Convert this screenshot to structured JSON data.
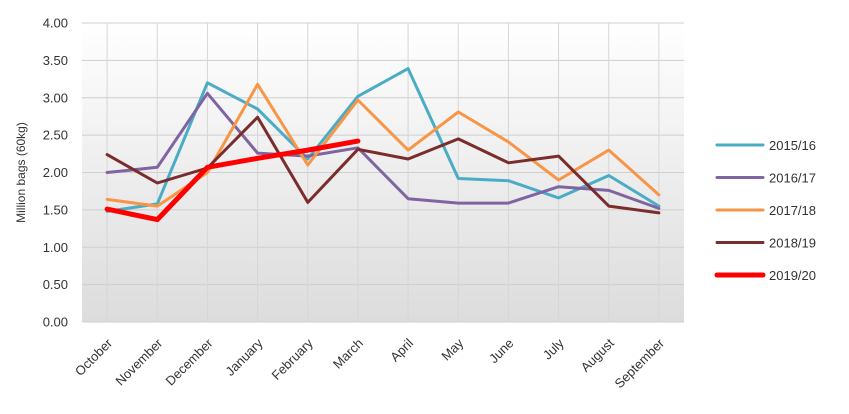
{
  "chart_data": {
    "type": "line",
    "title": "",
    "ylabel": "Million bags (60kg)",
    "xlabel": "",
    "ylim": [
      0,
      4
    ],
    "ytick_step": 0.5,
    "ytick_labels": [
      "0.00",
      "0.50",
      "1.00",
      "1.50",
      "2.00",
      "2.50",
      "3.00",
      "3.50",
      "4.00"
    ],
    "categories": [
      "October",
      "November",
      "December",
      "January",
      "February",
      "March",
      "April",
      "May",
      "June",
      "July",
      "August",
      "September"
    ],
    "grid": true,
    "legend_position": "right",
    "series": [
      {
        "name": "2015/16",
        "color": "#4bacc6",
        "values": [
          1.48,
          1.58,
          3.2,
          2.85,
          2.18,
          3.02,
          3.39,
          1.92,
          1.89,
          1.66,
          1.96,
          1.55
        ]
      },
      {
        "name": "2016/17",
        "color": "#8064a2",
        "values": [
          2.0,
          2.07,
          3.06,
          2.26,
          2.22,
          2.33,
          1.65,
          1.59,
          1.59,
          1.81,
          1.76,
          1.52
        ]
      },
      {
        "name": "2017/18",
        "color": "#f79646",
        "values": [
          1.64,
          1.55,
          2.0,
          3.18,
          2.1,
          2.97,
          2.3,
          2.81,
          2.41,
          1.9,
          2.3,
          1.7
        ]
      },
      {
        "name": "2018/19",
        "color": "#7b2c2c",
        "values": [
          2.24,
          1.86,
          2.06,
          2.74,
          1.6,
          2.31,
          2.18,
          2.45,
          2.13,
          2.22,
          1.55,
          1.46
        ]
      },
      {
        "name": "2019/20",
        "color": "#ff0000",
        "thick": true,
        "values": [
          1.51,
          1.37,
          2.07,
          2.19,
          2.3,
          2.42,
          null,
          null,
          null,
          null,
          null,
          null
        ]
      }
    ]
  }
}
